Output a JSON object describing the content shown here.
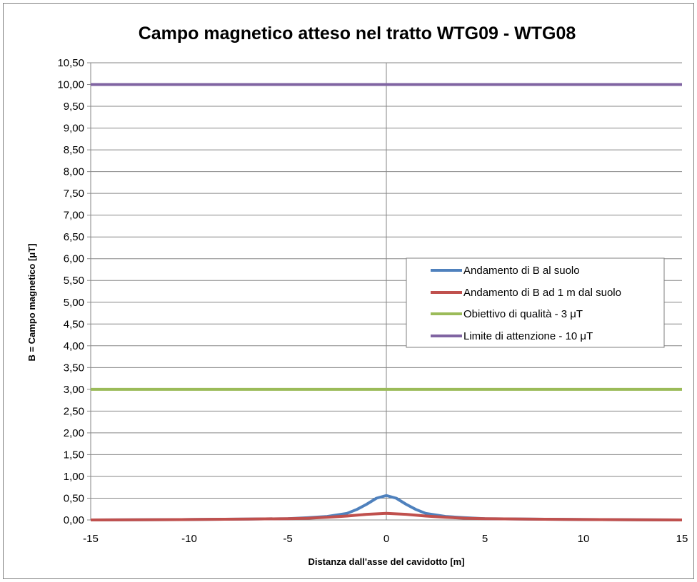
{
  "chart_data": {
    "type": "line",
    "title": "Campo magnetico atteso nel tratto WTG09 - WTG08",
    "xlabel": "Distanza dall'asse del cavidotto [m]",
    "ylabel": "B = Campo magnetico [μT]",
    "xlim": [
      -15,
      15
    ],
    "ylim": [
      0,
      10.5
    ],
    "x_ticks": [
      "-15",
      "-10",
      "-5",
      "0",
      "5",
      "10",
      "15"
    ],
    "y_ticks": [
      "0,00",
      "0,50",
      "1,00",
      "1,50",
      "2,00",
      "2,50",
      "3,00",
      "3,50",
      "4,00",
      "4,50",
      "5,00",
      "5,50",
      "6,00",
      "6,50",
      "7,00",
      "7,50",
      "8,00",
      "8,50",
      "9,00",
      "9,50",
      "10,00",
      "10,50"
    ],
    "grid": "horizontal",
    "legend_position": "center-right",
    "series": [
      {
        "name": "Andamento di B al suolo",
        "color": "#4f81bd",
        "x": [
          -15,
          -10,
          -7,
          -5,
          -4,
          -3,
          -2,
          -1.5,
          -1,
          -0.5,
          0,
          0.5,
          1,
          1.5,
          2,
          3,
          4,
          5,
          7,
          10,
          15
        ],
        "values": [
          0.0,
          0.01,
          0.02,
          0.03,
          0.05,
          0.08,
          0.15,
          0.24,
          0.36,
          0.5,
          0.56,
          0.5,
          0.36,
          0.24,
          0.15,
          0.08,
          0.05,
          0.03,
          0.02,
          0.01,
          0.0
        ]
      },
      {
        "name": "Andamento di B ad 1 m dal suolo",
        "color": "#c0504d",
        "x": [
          -15,
          -10,
          -7,
          -5,
          -4,
          -3,
          -2,
          -1,
          0,
          1,
          2,
          3,
          4,
          5,
          7,
          10,
          15
        ],
        "values": [
          0.0,
          0.01,
          0.02,
          0.03,
          0.04,
          0.06,
          0.09,
          0.13,
          0.15,
          0.13,
          0.09,
          0.06,
          0.04,
          0.03,
          0.02,
          0.01,
          0.0
        ]
      },
      {
        "name": "Obiettivo di qualità - 3 μT",
        "color": "#9bbb59",
        "x": [
          -15,
          15
        ],
        "values": [
          3,
          3
        ]
      },
      {
        "name": "Limite di attenzione - 10 μT",
        "color": "#8064a2",
        "x": [
          -15,
          15
        ],
        "values": [
          10,
          10
        ]
      }
    ]
  }
}
